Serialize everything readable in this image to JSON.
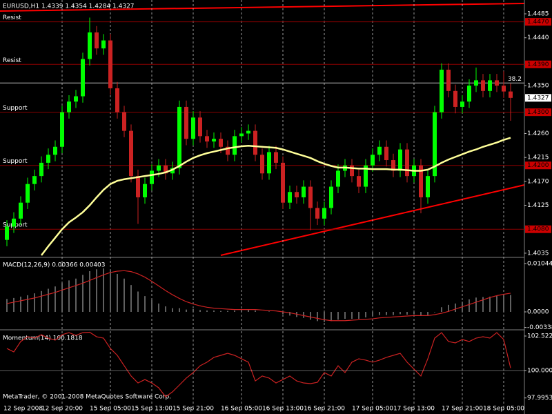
{
  "chart_data": [
    {
      "type": "candlestick",
      "title": "EURUSD,H1  1.4339 1.4354 1.4284 1.4327",
      "bull_color": "#00ff00",
      "bear_color": "#cc2222",
      "categories": [
        "12 Sep 2008",
        null,
        null,
        null,
        null,
        null,
        null,
        null,
        "12 Sep 20:00",
        null,
        null,
        null,
        null,
        null,
        null,
        "15 Sep 05:00",
        null,
        null,
        null,
        null,
        null,
        "15 Sep 13:00",
        null,
        null,
        null,
        null,
        null,
        "15 Sep 21:00",
        null,
        null,
        null,
        null,
        null,
        null,
        "16 Sep 05:00",
        null,
        null,
        null,
        null,
        null,
        "16 Sep 13:00",
        null,
        null,
        null,
        null,
        null,
        "16 Sep 21:00",
        null,
        null,
        null,
        null,
        null,
        null,
        "17 Sep 05:00",
        null,
        null,
        null,
        null,
        null,
        "17 Sep 13:00",
        null,
        null,
        null,
        null,
        null,
        null,
        "17 Sep 21:00",
        null,
        null,
        null,
        null,
        null,
        "18 Sep 05:00",
        null
      ],
      "open": [
        1.406,
        1.4085,
        1.41,
        1.413,
        1.4165,
        1.418,
        1.4205,
        1.422,
        1.4235,
        1.43,
        1.432,
        1.433,
        1.44,
        1.445,
        1.442,
        1.4435,
        1.4345,
        1.43,
        1.4265,
        1.418,
        1.414,
        1.4165,
        1.419,
        1.42,
        1.4185,
        1.4195,
        1.431,
        1.425,
        1.429,
        1.4255,
        1.4245,
        1.425,
        1.4235,
        1.422,
        1.4255,
        1.426,
        1.4265,
        1.422,
        1.4185,
        1.4225,
        1.4205,
        1.413,
        1.415,
        1.414,
        1.416,
        1.412,
        1.41,
        1.412,
        1.416,
        1.419,
        1.42,
        1.418,
        1.416,
        1.42,
        1.422,
        1.4235,
        1.421,
        1.419,
        1.423,
        1.418,
        1.42,
        1.414,
        1.418,
        1.43,
        1.438,
        1.434,
        1.431,
        1.432,
        1.435,
        1.436,
        1.434,
        1.436,
        1.435,
        1.4339
      ],
      "high": [
        1.4097,
        1.4112,
        1.4142,
        1.4177,
        1.4192,
        1.4217,
        1.4232,
        1.4247,
        1.4312,
        1.4332,
        1.4342,
        1.4412,
        1.4478,
        1.4462,
        1.4447,
        1.4447,
        1.4357,
        1.4312,
        1.4277,
        1.4192,
        1.4177,
        1.4202,
        1.4212,
        1.4212,
        1.4207,
        1.4322,
        1.4322,
        1.4302,
        1.4302,
        1.4267,
        1.4262,
        1.4262,
        1.4247,
        1.4267,
        1.4272,
        1.4277,
        1.4277,
        1.4232,
        1.4237,
        1.4237,
        1.4217,
        1.4162,
        1.4162,
        1.4172,
        1.4172,
        1.4132,
        1.4132,
        1.4172,
        1.4202,
        1.4212,
        1.4212,
        1.4192,
        1.4212,
        1.4232,
        1.4247,
        1.4247,
        1.4222,
        1.4242,
        1.4242,
        1.4212,
        1.4212,
        1.4192,
        1.4312,
        1.4392,
        1.4392,
        1.4352,
        1.4332,
        1.4362,
        1.4384,
        1.4372,
        1.4372,
        1.4372,
        1.4377,
        1.4354
      ],
      "low": [
        1.4048,
        1.4073,
        1.4088,
        1.4118,
        1.4153,
        1.4168,
        1.4193,
        1.4208,
        1.4223,
        1.4288,
        1.4308,
        1.4318,
        1.4388,
        1.4408,
        1.4408,
        1.4333,
        1.4288,
        1.4253,
        1.4168,
        1.409,
        1.4128,
        1.4153,
        1.4178,
        1.4173,
        1.4173,
        1.4183,
        1.4238,
        1.4238,
        1.4243,
        1.4233,
        1.4233,
        1.4223,
        1.4208,
        1.4208,
        1.4243,
        1.4248,
        1.4208,
        1.4173,
        1.4173,
        1.4193,
        1.4118,
        1.4118,
        1.4128,
        1.4128,
        1.4078,
        1.4088,
        1.4088,
        1.4108,
        1.4148,
        1.4178,
        1.4168,
        1.4148,
        1.4148,
        1.4188,
        1.4208,
        1.4198,
        1.4178,
        1.4178,
        1.4168,
        1.4168,
        1.411,
        1.4128,
        1.4168,
        1.4288,
        1.4328,
        1.4298,
        1.4298,
        1.4308,
        1.4338,
        1.4328,
        1.4328,
        1.4338,
        1.4327,
        1.4284
      ],
      "close": [
        1.4085,
        1.41,
        1.413,
        1.4165,
        1.418,
        1.4205,
        1.422,
        1.4235,
        1.43,
        1.432,
        1.433,
        1.44,
        1.445,
        1.442,
        1.4435,
        1.4345,
        1.43,
        1.4265,
        1.418,
        1.414,
        1.4165,
        1.419,
        1.42,
        1.4185,
        1.4195,
        1.431,
        1.425,
        1.429,
        1.4255,
        1.4245,
        1.425,
        1.4235,
        1.422,
        1.4255,
        1.426,
        1.4265,
        1.422,
        1.4185,
        1.4225,
        1.4205,
        1.413,
        1.415,
        1.414,
        1.416,
        1.412,
        1.41,
        1.412,
        1.416,
        1.419,
        1.42,
        1.418,
        1.416,
        1.42,
        1.422,
        1.4235,
        1.421,
        1.419,
        1.423,
        1.418,
        1.42,
        1.414,
        1.418,
        1.43,
        1.438,
        1.434,
        1.431,
        1.432,
        1.435,
        1.436,
        1.434,
        1.436,
        1.435,
        1.4339,
        1.4327
      ],
      "moving_average": {
        "color": "#ffff99",
        "values": [
          null,
          null,
          null,
          null,
          null,
          1.4031,
          1.4048,
          1.4064,
          1.408,
          1.4093,
          1.4102,
          1.4112,
          1.4125,
          1.414,
          1.4154,
          1.4165,
          1.4171,
          1.4174,
          1.4176,
          1.4178,
          1.418,
          1.4182,
          1.4184,
          1.4187,
          1.4192,
          1.4199,
          1.4207,
          1.4214,
          1.4219,
          1.4223,
          1.4226,
          1.4229,
          1.4232,
          1.4234,
          1.4236,
          1.4237,
          1.4236,
          1.4235,
          1.4234,
          1.4233,
          1.423,
          1.4226,
          1.4222,
          1.4218,
          1.4214,
          1.4208,
          1.4203,
          1.4199,
          1.4196,
          1.4196,
          1.4195,
          1.4194,
          1.4194,
          1.4193,
          1.4193,
          1.4193,
          1.4192,
          1.4192,
          1.4191,
          1.419,
          1.419,
          1.4192,
          1.4198,
          1.4205,
          1.4211,
          1.4216,
          1.4221,
          1.4226,
          1.423,
          1.4235,
          1.4239,
          1.4243,
          1.4248,
          1.4252
        ]
      },
      "levels": [
        {
          "name": "Resist",
          "value": 1.447,
          "label": "1.4470"
        },
        {
          "name": "Resist",
          "value": 1.439,
          "label": "1.4390"
        },
        {
          "name": "Support",
          "value": 1.43,
          "label": "1.4300"
        },
        {
          "name": "Support",
          "value": 1.42,
          "label": "1.4200"
        },
        {
          "name": "Support",
          "value": 1.408,
          "label": "1.4080"
        }
      ],
      "level_color": "#8b0000",
      "fib_level": {
        "name": "38.2",
        "value": 1.4355
      },
      "ylim": [
        1.4031,
        1.4511
      ],
      "yticks": [
        1.4485,
        {
          "value": 1.444,
          "label": "1.4440"
        },
        {
          "value": 1.435,
          "label": "1.4350"
        },
        {
          "value": 1.426,
          "label": "1.4260"
        },
        1.4215,
        {
          "value": 1.417,
          "label": "1.4170"
        },
        1.4125,
        1.4035
      ]
    },
    {
      "type": "macd",
      "title": "MACD(12,26,9) 0.00366 0.00403",
      "histogram_color": "#c0c0c0",
      "signal_color": "#cc2222",
      "histogram": [
        0.0028,
        0.003,
        0.0033,
        0.0036,
        0.004,
        0.0045,
        0.005,
        0.0055,
        0.0062,
        0.0068,
        0.0072,
        0.008,
        0.0088,
        0.0092,
        0.0094,
        0.009,
        0.0082,
        0.0072,
        0.0058,
        0.0044,
        0.0034,
        0.0026,
        0.0018,
        0.0012,
        0.0008,
        0.0008,
        0.0005,
        0.0006,
        0.0004,
        0.0003,
        0.0003,
        0.0002,
        0.0002,
        0.0003,
        0.0004,
        0.0005,
        0.0003,
        0,
        0.0001,
        0,
        -0.0005,
        -0.0008,
        -0.0011,
        -0.0013,
        -0.0017,
        -0.002,
        -0.0022,
        -0.002,
        -0.0017,
        -0.0015,
        -0.0015,
        -0.0015,
        -0.0012,
        -0.0009,
        -0.0007,
        -0.0007,
        -0.0007,
        -0.0005,
        -0.0006,
        -0.0005,
        -0.0008,
        -0.0007,
        -0.0001,
        0.001,
        0.0015,
        0.0018,
        0.0022,
        0.0027,
        0.0031,
        0.0032,
        0.0033,
        0.0035,
        0.0037,
        0.00366
      ],
      "signal": [
        0.0018,
        0.0021,
        0.0024,
        0.0027,
        0.003,
        0.0034,
        0.0038,
        0.0042,
        0.0047,
        0.0052,
        0.0057,
        0.0062,
        0.0068,
        0.0074,
        0.008,
        0.0085,
        0.0088,
        0.0089,
        0.0087,
        0.0082,
        0.0075,
        0.0066,
        0.0056,
        0.0046,
        0.0037,
        0.0029,
        0.0022,
        0.0017,
        0.0013,
        0.001,
        0.0008,
        0.0007,
        0.0006,
        0.0005,
        0.0005,
        0.0005,
        0.0005,
        0.0004,
        0.0003,
        0.0002,
        0,
        -0.0002,
        -0.0005,
        -0.0008,
        -0.0011,
        -0.0014,
        -0.0017,
        -0.0019,
        -0.0019,
        -0.0019,
        -0.0018,
        -0.0017,
        -0.0016,
        -0.0015,
        -0.0013,
        -0.0012,
        -0.0011,
        -0.001,
        -0.0009,
        -0.0008,
        -0.0008,
        -0.0008,
        -0.0006,
        -0.0003,
        0.0001,
        0.0006,
        0.0011,
        0.0016,
        0.0021,
        0.0026,
        0.0031,
        0.0035,
        0.0038,
        0.00403
      ],
      "ylim": [
        -0.00358,
        0.01133
      ],
      "yticks": [
        0.01044,
        {
          "value": 0,
          "label": "0.0000"
        },
        -0.00338
      ]
    },
    {
      "type": "line",
      "title": "Momentum(14) 100.1818",
      "annotation": "MetaTrader, © 2001-2008 MetaQuotes Software Corp.",
      "color": "#cc2222",
      "values": [
        101.61,
        101.36,
        102.12,
        102.47,
        102.37,
        102.62,
        102.37,
        102.22,
        102.62,
        102.77,
        102.57,
        102.77,
        102.8,
        102.47,
        102.37,
        101.61,
        101.11,
        100.35,
        99.6,
        99.09,
        99.34,
        99.09,
        98.74,
        98.08,
        98.44,
        98.94,
        99.45,
        99.85,
        100.35,
        100.61,
        100.96,
        101.11,
        101.26,
        101.11,
        100.86,
        100.61,
        99.24,
        99.6,
        99.45,
        99.09,
        99.34,
        99.6,
        99.24,
        99.09,
        99.04,
        99.14,
        99.85,
        99.6,
        100.35,
        99.85,
        100.61,
        100.86,
        100.76,
        100.61,
        100.76,
        100.96,
        101.11,
        101.26,
        100.61,
        100.1,
        99.6,
        100.86,
        102.37,
        102.77,
        102.12,
        102.02,
        102.27,
        102.12,
        102.37,
        102.47,
        102.37,
        102.77,
        102.27,
        100.1818
      ],
      "ylim": [
        97.023,
        102.825
      ],
      "yticks": [
        102.5222,
        {
          "value": 100,
          "label": "100.0000"
        },
        97.9953
      ]
    }
  ]
}
